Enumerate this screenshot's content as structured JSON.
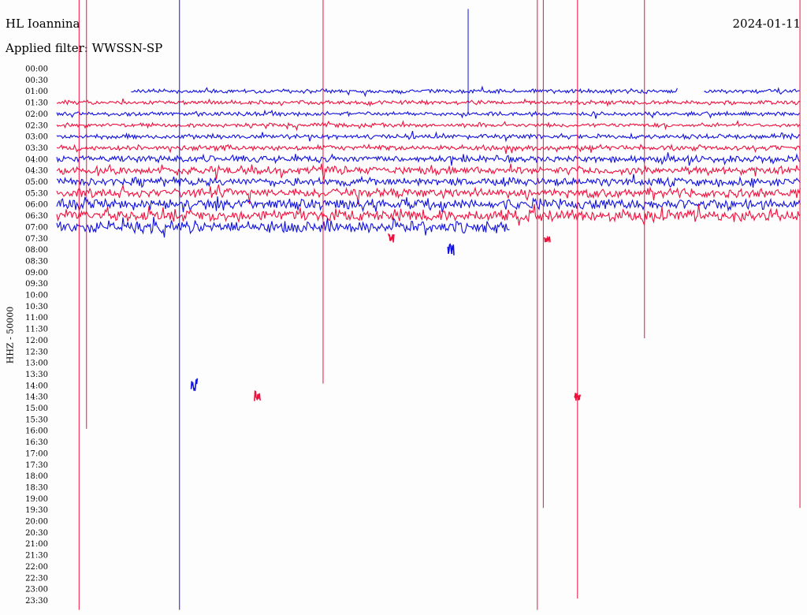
{
  "header": {
    "station": "HL Ioannina",
    "filter_text": "Applied filter: WWSSN-SP",
    "date": "2024-01-11"
  },
  "chart_data": {
    "type": "line",
    "title": "HL Ioannina",
    "ylabel": "HHZ - 50000",
    "date": "2024-01-11",
    "row_labels": [
      "00:00",
      "00:30",
      "01:00",
      "01:30",
      "02:00",
      "02:30",
      "03:00",
      "03:30",
      "04:00",
      "04:30",
      "05:00",
      "05:30",
      "06:00",
      "06:30",
      "07:00",
      "07:30",
      "08:00",
      "08:30",
      "09:00",
      "09:30",
      "10:00",
      "10:30",
      "11:00",
      "11:30",
      "12:00",
      "12:30",
      "13:00",
      "13:30",
      "14:00",
      "14:30",
      "15:00",
      "15:30",
      "16:00",
      "16:30",
      "17:00",
      "17:30",
      "18:00",
      "18:30",
      "19:00",
      "19:30",
      "20:00",
      "20:30",
      "21:00",
      "21:30",
      "22:00",
      "22:30",
      "23:00",
      "23:30"
    ],
    "trace_colors": [
      "#1010e0",
      "#f0103c"
    ],
    "rows": [
      {
        "time": "01:00",
        "color": "blue",
        "start": 0.1,
        "end": 1.0,
        "amp": 3,
        "gap": [
          0.835,
          0.87
        ]
      },
      {
        "time": "01:30",
        "color": "red",
        "start": 0.0,
        "end": 1.0,
        "amp": 3
      },
      {
        "time": "02:00",
        "color": "blue",
        "start": 0.0,
        "end": 1.0,
        "amp": 3
      },
      {
        "time": "02:30",
        "color": "red",
        "start": 0.0,
        "end": 1.0,
        "amp": 3
      },
      {
        "time": "03:00",
        "color": "blue",
        "start": 0.0,
        "end": 1.0,
        "amp": 3.5
      },
      {
        "time": "03:30",
        "color": "red",
        "start": 0.0,
        "end": 1.0,
        "amp": 4
      },
      {
        "time": "04:00",
        "color": "blue",
        "start": 0.0,
        "end": 1.0,
        "amp": 5
      },
      {
        "time": "04:30",
        "color": "red",
        "start": 0.0,
        "end": 1.0,
        "amp": 6
      },
      {
        "time": "05:00",
        "color": "blue",
        "start": 0.0,
        "end": 1.0,
        "amp": 6
      },
      {
        "time": "05:30",
        "color": "red",
        "start": 0.0,
        "end": 1.0,
        "amp": 7
      },
      {
        "time": "06:00",
        "color": "blue",
        "start": 0.0,
        "end": 1.0,
        "amp": 8
      },
      {
        "time": "06:30",
        "color": "red",
        "start": 0.0,
        "end": 1.0,
        "amp": 9
      },
      {
        "time": "07:00",
        "color": "blue",
        "start": 0.0,
        "end": 0.61,
        "amp": 9
      }
    ],
    "events": [
      {
        "time": "07:30",
        "color": "red",
        "x": 0.45,
        "amp": 6
      },
      {
        "time": "07:30",
        "color": "red",
        "x": 0.66,
        "amp": 5
      },
      {
        "time": "08:00",
        "color": "blue",
        "x": 0.53,
        "amp": 8
      },
      {
        "time": "14:00",
        "color": "blue",
        "x": 0.185,
        "amp": 10
      },
      {
        "time": "14:30",
        "color": "red",
        "x": 0.27,
        "amp": 7
      },
      {
        "time": "14:30",
        "color": "red",
        "x": 0.7,
        "amp": 5
      }
    ],
    "spikes": [
      {
        "color": "red",
        "x": 0.03,
        "from": "00:00",
        "to": "23:30"
      },
      {
        "color": "red",
        "x": 0.04,
        "from": "00:00",
        "to": "15:30"
      },
      {
        "color": "blue",
        "x": 0.165,
        "from": "00:00",
        "to": "23:30"
      },
      {
        "color": "red",
        "x": 0.358,
        "from": "00:00",
        "to": "13:30"
      },
      {
        "color": "blue",
        "x": 0.553,
        "from": "00:30",
        "to": "01:30"
      },
      {
        "color": "red",
        "x": 0.646,
        "from": "00:00",
        "to": "23:30"
      },
      {
        "color": "red",
        "x": 0.654,
        "from": "00:00",
        "to": "19:00"
      },
      {
        "color": "red",
        "x": 0.7,
        "from": "00:00",
        "to": "23:00"
      },
      {
        "color": "red",
        "x": 0.79,
        "from": "00:00",
        "to": "11:30"
      },
      {
        "color": "red",
        "x": 0.999,
        "from": "00:00",
        "to": "19:00"
      }
    ]
  }
}
